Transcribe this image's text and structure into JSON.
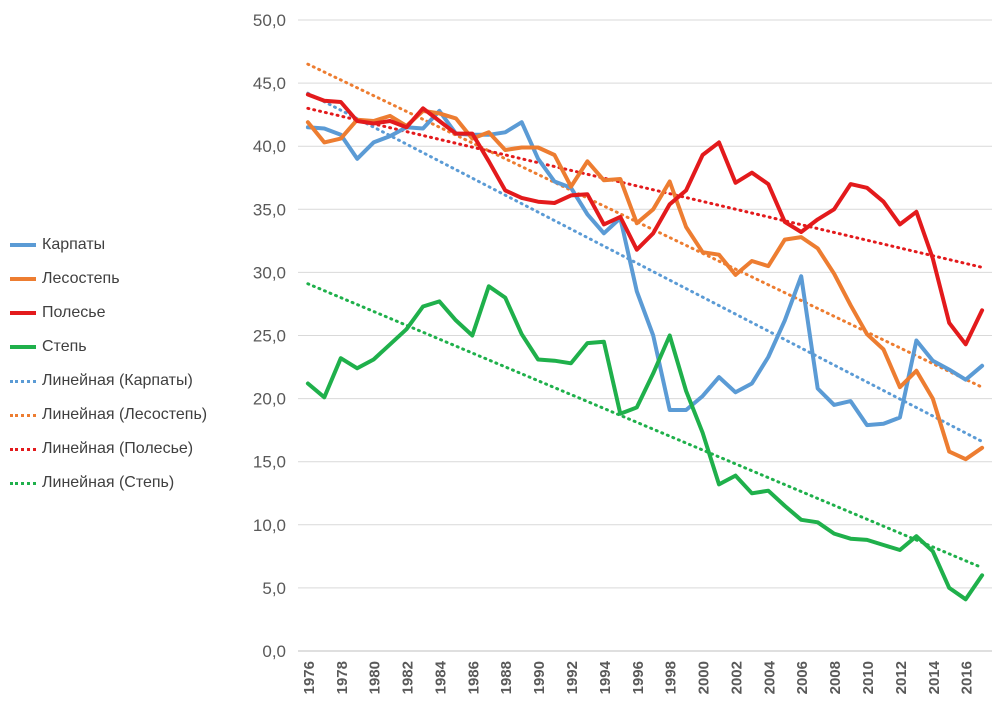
{
  "chart_data": {
    "type": "line",
    "title": "",
    "xlabel": "",
    "ylabel": "",
    "ylim": [
      0,
      50
    ],
    "yticks": [
      "0,0",
      "5,0",
      "10,0",
      "15,0",
      "20,0",
      "25,0",
      "30,0",
      "35,0",
      "40,0",
      "45,0",
      "50,0"
    ],
    "x": [
      1976,
      1977,
      1978,
      1979,
      1980,
      1981,
      1982,
      1983,
      1984,
      1985,
      1986,
      1987,
      1988,
      1989,
      1990,
      1991,
      1992,
      1993,
      1994,
      1995,
      1996,
      1997,
      1998,
      1999,
      2000,
      2001,
      2002,
      2003,
      2004,
      2005,
      2006,
      2007,
      2008,
      2009,
      2010,
      2011,
      2012,
      2013,
      2014,
      2015,
      2016,
      2017
    ],
    "xtick_labels": [
      "1976",
      "1978",
      "1980",
      "1982",
      "1984",
      "1986",
      "1988",
      "1990",
      "1992",
      "1994",
      "1996",
      "1998",
      "2000",
      "2002",
      "2004",
      "2006",
      "2008",
      "2010",
      "2012",
      "2014",
      "2016"
    ],
    "grid": "horizontal",
    "legend_position": "left",
    "series": [
      {
        "name": "Карпаты",
        "color": "#5B9BD5",
        "values": [
          41.5,
          41.4,
          40.9,
          39.0,
          40.3,
          40.8,
          41.5,
          41.4,
          42.8,
          41.0,
          40.9,
          40.9,
          41.1,
          41.9,
          39.0,
          37.2,
          36.7,
          34.6,
          33.1,
          34.3,
          28.5,
          25.0,
          19.1,
          19.1,
          20.2,
          21.7,
          20.5,
          21.2,
          23.3,
          26.2,
          29.7,
          20.8,
          19.5,
          19.8,
          17.9,
          18.0,
          18.5,
          24.6,
          23.0,
          22.3,
          21.5,
          22.6
        ]
      },
      {
        "name": "Лесостепь",
        "color": "#ED7D31",
        "values": [
          41.9,
          40.3,
          40.6,
          42.1,
          42.0,
          42.4,
          41.6,
          42.8,
          42.6,
          42.2,
          40.6,
          41.1,
          39.7,
          39.9,
          39.9,
          39.3,
          36.8,
          38.8,
          37.3,
          37.4,
          33.9,
          35.0,
          37.2,
          33.6,
          31.6,
          31.4,
          29.8,
          30.9,
          30.5,
          32.6,
          32.8,
          31.9,
          29.9,
          27.4,
          25.1,
          23.9,
          20.9,
          22.2,
          20.0,
          15.8,
          15.2,
          16.1
        ]
      },
      {
        "name": "Полесье",
        "color": "#E31A1C",
        "values": [
          44.1,
          43.6,
          43.5,
          42.0,
          41.8,
          42.0,
          41.5,
          43.0,
          42.0,
          41.0,
          41.0,
          38.8,
          36.5,
          35.9,
          35.6,
          35.5,
          36.1,
          36.2,
          33.8,
          34.4,
          31.8,
          33.1,
          35.4,
          36.5,
          39.3,
          40.3,
          37.1,
          37.9,
          37.0,
          34.0,
          33.2,
          34.2,
          35.0,
          37.0,
          36.7,
          35.6,
          33.8,
          34.8,
          31.1,
          26.0,
          24.3,
          27.0
        ]
      },
      {
        "name": "Степь",
        "color": "#1FB04B",
        "values": [
          21.2,
          20.1,
          23.2,
          22.4,
          23.1,
          24.3,
          25.5,
          27.3,
          27.7,
          26.2,
          25.0,
          28.9,
          28.0,
          25.1,
          23.1,
          23.0,
          22.8,
          24.4,
          24.5,
          18.8,
          19.3,
          22.0,
          25.0,
          20.6,
          17.3,
          13.2,
          13.9,
          12.5,
          12.7,
          11.5,
          10.4,
          10.2,
          9.3,
          8.9,
          8.8,
          8.4,
          8.0,
          9.1,
          7.9,
          5.0,
          4.1,
          6.0
        ]
      }
    ],
    "trendlines": [
      {
        "name": "Линейная  (Карпаты)",
        "color": "#5B9BD5",
        "start": 44.2,
        "end": 16.6
      },
      {
        "name": "Линейная  (Лесостепь)",
        "color": "#ED7D31",
        "start": 46.5,
        "end": 20.9
      },
      {
        "name": "Линейная  (Полесье)",
        "color": "#E31A1C",
        "start": 43.0,
        "end": 30.4
      },
      {
        "name": "Линейная  (Степь)",
        "color": "#1FB04B",
        "start": 29.1,
        "end": 6.6
      }
    ]
  }
}
